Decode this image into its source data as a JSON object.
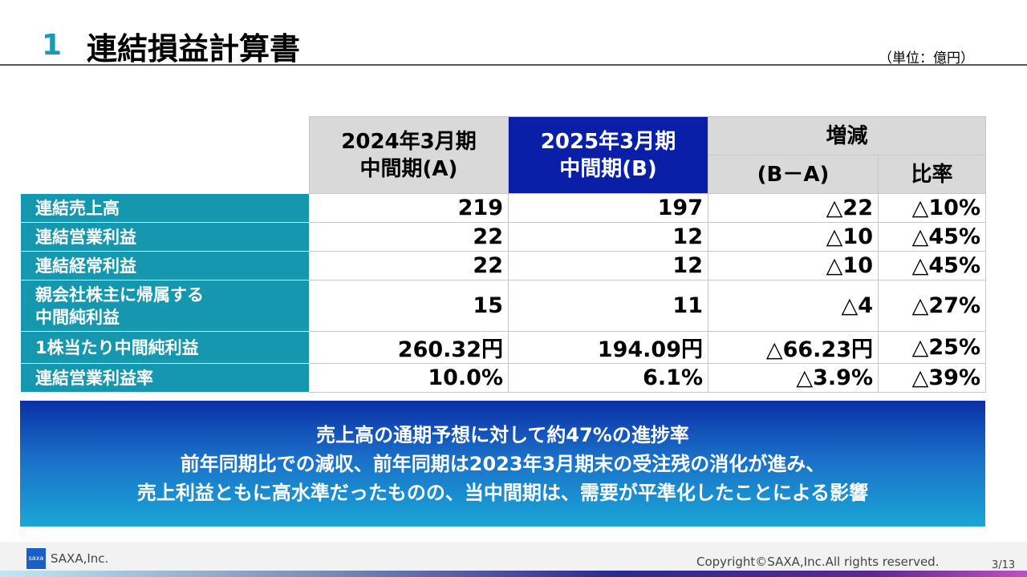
{
  "header": {
    "number": "1",
    "title": "連結損益計算書",
    "unit": "（単位：億円）"
  },
  "table": {
    "col_a": [
      "2024年3月期",
      "中間期(A)"
    ],
    "col_b": [
      "2025年3月期",
      "中間期(B)"
    ],
    "change": "増減",
    "diff": "(B－A)",
    "ratio": "比率",
    "rows": [
      {
        "label": "連結売上高",
        "a": "219",
        "b": "197",
        "diff": "△22",
        "ratio": "△10%"
      },
      {
        "label": "連結営業利益",
        "a": "22",
        "b": "12",
        "diff": "△10",
        "ratio": "△45%"
      },
      {
        "label": "連結経常利益",
        "a": "22",
        "b": "12",
        "diff": "△10",
        "ratio": "△45%"
      },
      {
        "label": "親会社株主に帰属する",
        "label2": "中間純利益",
        "a": "15",
        "b": "11",
        "diff": "△4",
        "ratio": "△27%"
      },
      {
        "label": "1株当たり中間純利益",
        "a": "260.32円",
        "b": "194.09円",
        "diff": "△66.23円",
        "ratio": "△25%"
      },
      {
        "label": "連結営業利益率",
        "a": "10.0%",
        "b": "6.1%",
        "diff": "△3.9%",
        "ratio": "△39%"
      }
    ]
  },
  "message": [
    "売上高の通期予想に対して約47%の進捗率",
    "前年同期比での減収、前年同期は2023年3月期末の受注残の消化が進み、",
    "売上利益ともに高水準だったものの、当中間期は、需要が平準化したことによる影響"
  ],
  "footer": {
    "logo": "saxa",
    "company": "SAXA,Inc.",
    "copyright": "Copyright©SAXA,Inc.All rights reserved.",
    "page": "3/13"
  }
}
